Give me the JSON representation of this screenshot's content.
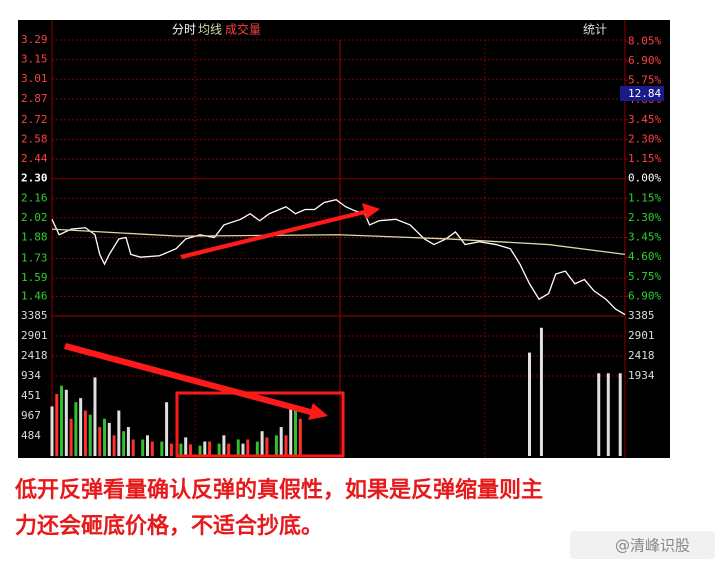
{
  "chart_data": [
    {
      "type": "line",
      "series": [
        {
          "name": "分时",
          "color": "#ffffff",
          "x": [
            0,
            3,
            8,
            14,
            18,
            20,
            22,
            24,
            28,
            31,
            33,
            37,
            45,
            52,
            56,
            62,
            68,
            72,
            79,
            83,
            87,
            91,
            98,
            102,
            106,
            110,
            114,
            119,
            123,
            127,
            131,
            133,
            137,
            144,
            150,
            156,
            160,
            165,
            169,
            173,
            179,
            186,
            192,
            196,
            200,
            204,
            208,
            211,
            215,
            219,
            223,
            227,
            232,
            236,
            240
          ],
          "values": [
            2.01,
            1.9,
            1.94,
            1.95,
            1.9,
            1.76,
            1.69,
            1.76,
            1.87,
            1.88,
            1.76,
            1.74,
            1.75,
            1.8,
            1.87,
            1.9,
            1.88,
            1.97,
            2.01,
            2.05,
            2.0,
            2.05,
            2.1,
            2.05,
            2.08,
            2.08,
            2.13,
            2.15,
            2.1,
            2.07,
            2.05,
            1.97,
            2.0,
            2.01,
            1.97,
            1.87,
            1.83,
            1.87,
            1.92,
            1.83,
            1.85,
            1.83,
            1.8,
            1.69,
            1.55,
            1.44,
            1.48,
            1.62,
            1.64,
            1.55,
            1.58,
            1.5,
            1.44,
            1.37,
            1.33
          ]
        },
        {
          "name": "均线",
          "color": "#d8d8a8",
          "x": [
            0,
            53,
            120,
            166,
            208,
            240
          ],
          "values": [
            1.94,
            1.89,
            1.9,
            1.87,
            1.83,
            1.76
          ]
        }
      ],
      "stats_label": "统计",
      "price_tag": "12.84",
      "xlim": [
        0,
        240
      ],
      "ylim": [
        1.32,
        3.29
      ],
      "yticks": [
        3.29,
        3.15,
        3.01,
        2.87,
        2.72,
        2.58,
        2.44,
        {
          "value": 2.3,
          "label": "2.30"
        },
        2.16,
        2.02,
        1.88,
        1.73,
        1.59,
        1.46
      ],
      "y2lim": [
        -8.05,
        8.13
      ],
      "y2ticks": [
        {
          "value": 8.05,
          "label": "8.05%"
        },
        {
          "value": 6.9,
          "label": "6.90%"
        },
        {
          "value": 5.75,
          "label": "5.75%"
        },
        {
          "value": 4.6,
          "label": "4.60%"
        },
        {
          "value": 3.45,
          "label": "3.45%"
        },
        {
          "value": 2.3,
          "label": "2.30%"
        },
        {
          "value": 1.15,
          "label": "1.15%"
        },
        {
          "value": 0,
          "label": "0.00%"
        },
        {
          "value": -1.15,
          "label": "1.15%"
        },
        {
          "value": -2.3,
          "label": "2.30%"
        },
        {
          "value": -3.45,
          "label": "3.45%"
        },
        {
          "value": -4.6,
          "label": "4.60%"
        },
        {
          "value": -5.75,
          "label": "5.75%"
        },
        {
          "value": -6.9,
          "label": "6.90%"
        }
      ],
      "grid": true
    },
    {
      "type": "bar",
      "title": "成交量",
      "xlim": [
        0,
        240
      ],
      "ylim": [
        0,
        3385
      ],
      "yticks": [
        3385,
        2901,
        2418,
        1934
      ],
      "left_labels": [
        "3385",
        "2901",
        "2418",
        "934",
        "451",
        "967",
        "484"
      ],
      "series": [
        {
          "color": "#ff3030",
          "x": [
            2,
            8,
            14,
            20,
            26,
            34,
            42,
            50,
            58,
            66,
            74,
            82,
            90,
            98,
            104
          ],
          "values": [
            1500,
            900,
            1100,
            700,
            500,
            400,
            350,
            300,
            280,
            350,
            300,
            400,
            450,
            500,
            900
          ]
        },
        {
          "color": "#30c030",
          "x": [
            4,
            10,
            16,
            22,
            30,
            38,
            46,
            54,
            62,
            70,
            78,
            86,
            94,
            102
          ],
          "values": [
            1700,
            1300,
            1000,
            900,
            600,
            400,
            350,
            300,
            250,
            300,
            400,
            350,
            500,
            1100
          ]
        },
        {
          "color": "#e0e0e0",
          "x": [
            0,
            6,
            12,
            18,
            24,
            28,
            32,
            40,
            48,
            56,
            64,
            72,
            80,
            88,
            96,
            100,
            200,
            205,
            229,
            233,
            238
          ],
          "values": [
            1200,
            1600,
            1400,
            1900,
            800,
            1100,
            700,
            500,
            1300,
            450,
            350,
            500,
            300,
            600,
            700,
            1200,
            2500,
            3100,
            2000,
            2000,
            2000
          ]
        }
      ]
    }
  ],
  "caption": [
    "低开反弹看量确认反弹的真假性，如果是反弹缩量则主",
    "力还会砸底价格，不适合抄底。"
  ],
  "watermark": "@清峰识股"
}
